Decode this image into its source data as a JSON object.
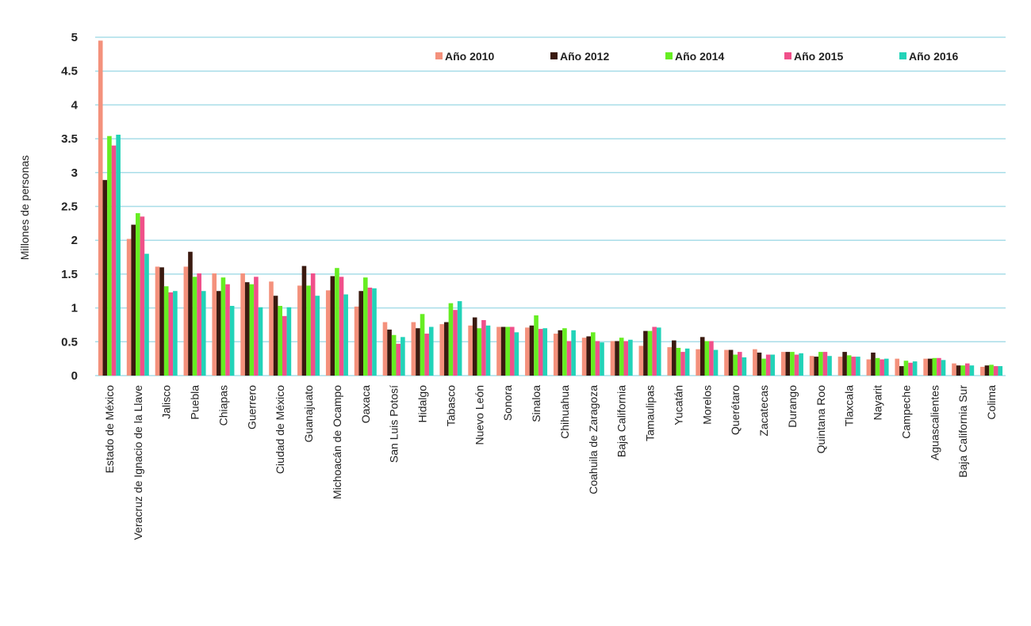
{
  "chart_data": {
    "type": "bar",
    "title": "",
    "xlabel": "",
    "ylabel": "Millones de personas",
    "ylim": [
      0,
      5
    ],
    "yticks": [
      "0",
      "0.5",
      "1",
      "1.5",
      "2",
      "2.5",
      "3",
      "3.5",
      "4",
      "4.5",
      "5"
    ],
    "grid": true,
    "legend_position": "top-right",
    "categories": [
      "Estado de México",
      "Veracruz de Ignacio de la Llave",
      "Jalisco",
      "Puebla",
      "Chiapas",
      "Guerrero",
      "Ciudad de México",
      "Guanajuato",
      "Michoacán de Ocampo",
      "Oaxaca",
      "San Luis Potosí",
      "Hidalgo",
      "Tabasco",
      "Nuevo León",
      "Sonora",
      "Sinaloa",
      "Chihuahua",
      "Coahuila de Zaragoza",
      "Baja California",
      "Tamaulipas",
      "Yucatán",
      "Morelos",
      "Querétaro",
      "Zacatecas",
      "Durango",
      "Quintana Roo",
      "Tlaxcala",
      "Nayarit",
      "Campeche",
      "Aguascalientes",
      "Baja California Sur",
      "Colima"
    ],
    "series": [
      {
        "name": "Año 2010",
        "color": "#f4917c",
        "values": [
          4.95,
          2.02,
          1.61,
          1.61,
          1.51,
          1.51,
          1.39,
          1.33,
          1.26,
          1.02,
          0.79,
          0.79,
          0.76,
          0.74,
          0.72,
          0.71,
          0.62,
          0.56,
          0.51,
          0.44,
          0.42,
          0.39,
          0.38,
          0.39,
          0.35,
          0.29,
          0.28,
          0.24,
          0.25,
          0.25,
          0.18,
          0.13
        ]
      },
      {
        "name": "Año 2012",
        "color": "#3a1a10",
        "values": [
          2.89,
          2.23,
          1.6,
          1.83,
          1.25,
          1.38,
          1.18,
          1.62,
          1.47,
          1.25,
          0.68,
          0.7,
          0.79,
          0.86,
          0.72,
          0.74,
          0.67,
          0.58,
          0.51,
          0.66,
          0.52,
          0.57,
          0.38,
          0.34,
          0.35,
          0.28,
          0.35,
          0.34,
          0.14,
          0.25,
          0.15,
          0.15
        ]
      },
      {
        "name": "Año 2014",
        "color": "#66ee22",
        "values": [
          3.54,
          2.4,
          1.32,
          1.46,
          1.45,
          1.35,
          1.03,
          1.33,
          1.59,
          1.45,
          0.6,
          0.91,
          1.07,
          0.7,
          0.72,
          0.89,
          0.7,
          0.64,
          0.56,
          0.66,
          0.41,
          0.51,
          0.31,
          0.25,
          0.35,
          0.35,
          0.3,
          0.26,
          0.22,
          0.26,
          0.15,
          0.16
        ]
      },
      {
        "name": "Año 2015",
        "color": "#f0508a",
        "values": [
          3.4,
          2.35,
          1.23,
          1.51,
          1.35,
          1.46,
          0.88,
          1.51,
          1.46,
          1.3,
          0.47,
          0.62,
          0.97,
          0.82,
          0.72,
          0.69,
          0.51,
          0.51,
          0.51,
          0.72,
          0.35,
          0.51,
          0.35,
          0.31,
          0.31,
          0.35,
          0.28,
          0.24,
          0.19,
          0.26,
          0.18,
          0.14
        ]
      },
      {
        "name": "Año 2016",
        "color": "#22d3b8",
        "values": [
          3.56,
          1.8,
          1.25,
          1.25,
          1.03,
          1.01,
          1.01,
          1.18,
          1.2,
          1.29,
          0.57,
          0.72,
          1.1,
          0.74,
          0.64,
          0.7,
          0.67,
          0.49,
          0.53,
          0.71,
          0.4,
          0.38,
          0.27,
          0.31,
          0.33,
          0.29,
          0.28,
          0.25,
          0.21,
          0.23,
          0.15,
          0.14
        ]
      }
    ],
    "grid_color": "#a8dde8"
  }
}
